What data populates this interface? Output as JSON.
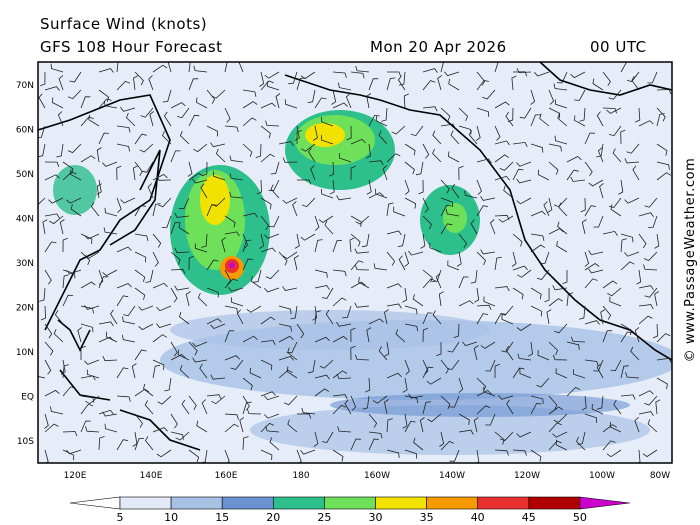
{
  "header": {
    "title": "Surface Wind (knots)",
    "subtitle": "GFS 108 Hour Forecast",
    "date": "Mon 20 Apr 2026",
    "time": "00 UTC"
  },
  "lat_labels": [
    "70N",
    "60N",
    "50N",
    "40N",
    "30N",
    "20N",
    "10N",
    "EQ",
    "10S"
  ],
  "lon_labels": [
    "120E",
    "140E",
    "160E",
    "180",
    "160W",
    "140W",
    "120W",
    "100W",
    "80W"
  ],
  "colorbar": {
    "ticks": [
      5,
      10,
      15,
      20,
      25,
      30,
      35,
      40,
      45,
      50
    ],
    "colors": [
      "#ffffff",
      "#e3eaf7",
      "#a8c2e6",
      "#6b93d2",
      "#2dbf8c",
      "#6ee05a",
      "#f2e200",
      "#f59a00",
      "#e83030",
      "#b00000",
      "#cc00cc"
    ]
  },
  "watermark": "© www.PassageWeather.com"
}
